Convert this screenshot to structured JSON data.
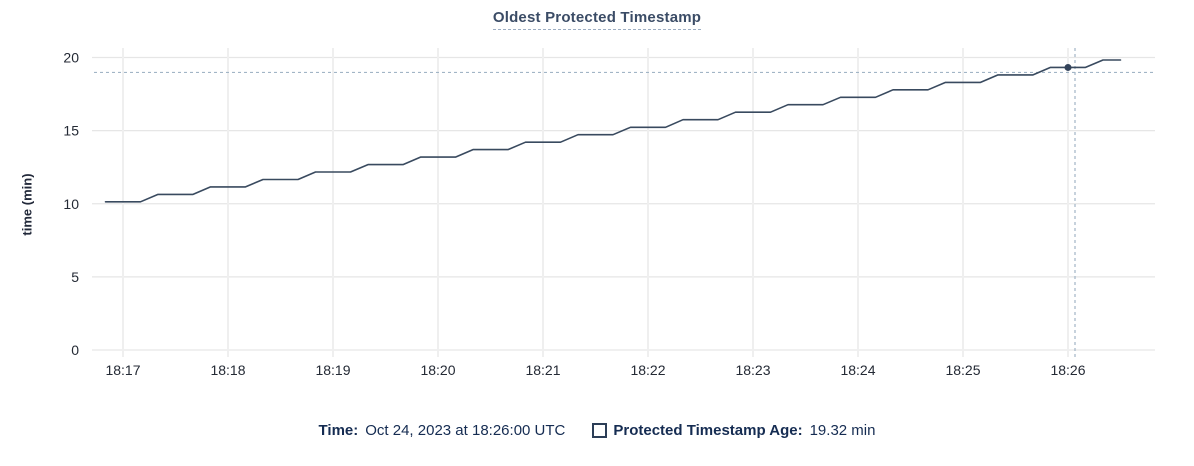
{
  "title": "Oldest Protected Timestamp",
  "y_axis_label": "time (min)",
  "legend": {
    "time_label": "Time:",
    "time_value": "Oct 24, 2023 at 18:26:00 UTC",
    "series_label": "Protected Timestamp Age:",
    "series_value": "19.32 min",
    "swatch_icon": "hollow-square"
  },
  "colors": {
    "line": "#394a5f",
    "dot": "#33435a",
    "crosshair": "#a2b5c6",
    "grid_horizontal": "#e6e6e6",
    "grid_vertical": "#efefef",
    "title_text": "#3b4c66",
    "legend_text": "#152c52",
    "tick_text": "#242a35"
  },
  "chart_data": {
    "type": "line",
    "title": "Oldest Protected Timestamp",
    "xlabel": "",
    "ylabel": "time (min)",
    "ylim": [
      0,
      20
    ],
    "y_ticks": [
      0,
      5,
      10,
      15,
      20
    ],
    "x_tick_labels": [
      "18:17",
      "18:18",
      "18:19",
      "18:20",
      "18:21",
      "18:22",
      "18:23",
      "18:24",
      "18:25",
      "18:26"
    ],
    "x_domain": [
      "18:16:50",
      "18:26:30"
    ],
    "grid": true,
    "legend_position": "bottom",
    "hover_point": {
      "time": "18:26:00",
      "value": 19.32,
      "date": "Oct 24, 2023",
      "tz": "UTC"
    },
    "series": [
      {
        "name": "Protected Timestamp Age",
        "unit": "min",
        "points": [
          [
            "18:16:50",
            10.13
          ],
          [
            "18:17:00",
            10.13
          ],
          [
            "18:17:10",
            10.13
          ],
          [
            "18:17:20",
            10.64
          ],
          [
            "18:17:30",
            10.64
          ],
          [
            "18:17:40",
            10.64
          ],
          [
            "18:17:50",
            11.15
          ],
          [
            "18:18:00",
            11.15
          ],
          [
            "18:18:10",
            11.15
          ],
          [
            "18:18:20",
            11.66
          ],
          [
            "18:18:30",
            11.66
          ],
          [
            "18:18:40",
            11.66
          ],
          [
            "18:18:50",
            12.17
          ],
          [
            "18:19:00",
            12.17
          ],
          [
            "18:19:10",
            12.17
          ],
          [
            "18:19:20",
            12.68
          ],
          [
            "18:19:30",
            12.68
          ],
          [
            "18:19:40",
            12.68
          ],
          [
            "18:19:50",
            13.19
          ],
          [
            "18:20:00",
            13.19
          ],
          [
            "18:20:10",
            13.19
          ],
          [
            "18:20:20",
            13.7
          ],
          [
            "18:20:30",
            13.7
          ],
          [
            "18:20:40",
            13.7
          ],
          [
            "18:20:50",
            14.21
          ],
          [
            "18:21:00",
            14.21
          ],
          [
            "18:21:10",
            14.21
          ],
          [
            "18:21:20",
            14.72
          ],
          [
            "18:21:30",
            14.72
          ],
          [
            "18:21:40",
            14.72
          ],
          [
            "18:21:50",
            15.23
          ],
          [
            "18:22:00",
            15.23
          ],
          [
            "18:22:10",
            15.23
          ],
          [
            "18:22:20",
            15.75
          ],
          [
            "18:22:30",
            15.75
          ],
          [
            "18:22:40",
            15.75
          ],
          [
            "18:22:50",
            16.26
          ],
          [
            "18:23:00",
            16.26
          ],
          [
            "18:23:10",
            16.26
          ],
          [
            "18:23:20",
            16.77
          ],
          [
            "18:23:30",
            16.77
          ],
          [
            "18:23:40",
            16.77
          ],
          [
            "18:23:50",
            17.28
          ],
          [
            "18:24:00",
            17.28
          ],
          [
            "18:24:10",
            17.28
          ],
          [
            "18:24:20",
            17.79
          ],
          [
            "18:24:30",
            17.79
          ],
          [
            "18:24:40",
            17.79
          ],
          [
            "18:24:50",
            18.3
          ],
          [
            "18:25:00",
            18.3
          ],
          [
            "18:25:10",
            18.3
          ],
          [
            "18:25:20",
            18.81
          ],
          [
            "18:25:30",
            18.81
          ],
          [
            "18:25:40",
            18.81
          ],
          [
            "18:25:50",
            19.32
          ],
          [
            "18:26:00",
            19.32
          ],
          [
            "18:26:10",
            19.32
          ],
          [
            "18:26:20",
            19.83
          ],
          [
            "18:26:30",
            19.83
          ]
        ]
      }
    ]
  }
}
